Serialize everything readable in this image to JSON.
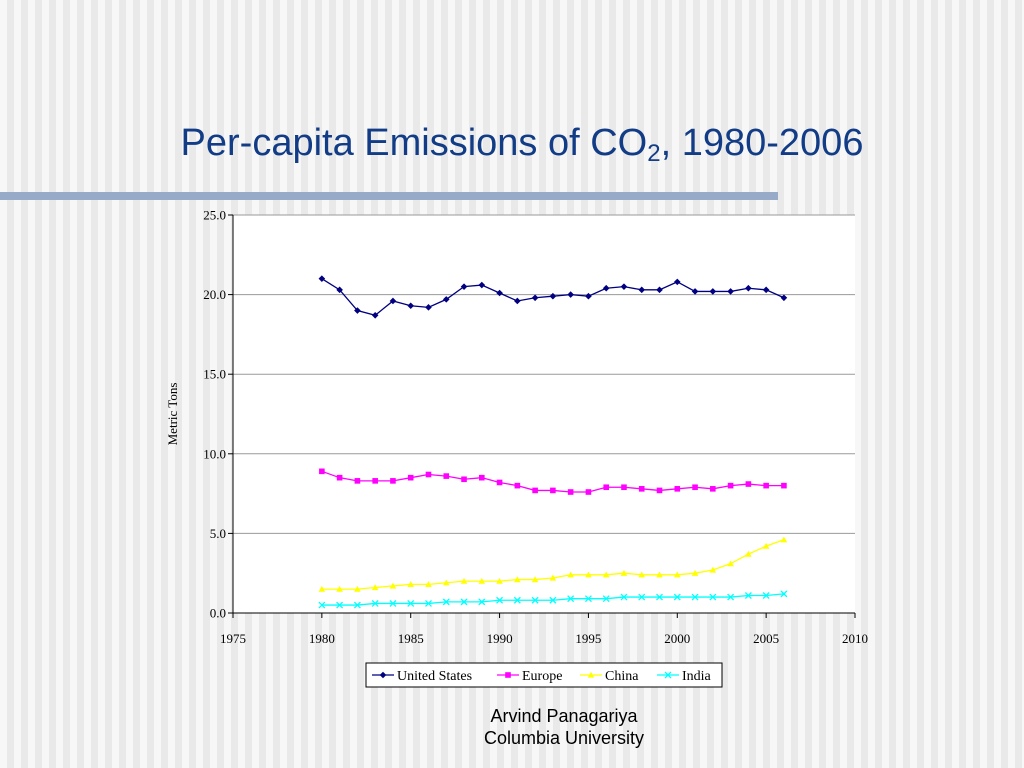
{
  "slide": {
    "title_main": "Per-capita Emissions of CO",
    "title_subscript": "2",
    "title_rest": ", 1980-2006",
    "footer_line1": "Arvind Panagariya",
    "footer_line2": "Columbia University"
  },
  "chart_data": {
    "type": "line",
    "title": "",
    "xlabel": "",
    "ylabel": "Metric Tons",
    "xlim": [
      1975,
      2010
    ],
    "ylim": [
      0,
      25
    ],
    "x_ticks": [
      "1975",
      "1980",
      "1985",
      "1990",
      "1995",
      "2000",
      "2005",
      "2010"
    ],
    "y_ticks": [
      "0.0",
      "5.0",
      "10.0",
      "15.0",
      "20.0",
      "25.0"
    ],
    "grid": "horizontal",
    "legend_position": "bottom",
    "x": [
      1980,
      1981,
      1982,
      1983,
      1984,
      1985,
      1986,
      1987,
      1988,
      1989,
      1990,
      1991,
      1992,
      1993,
      1994,
      1995,
      1996,
      1997,
      1998,
      1999,
      2000,
      2001,
      2002,
      2003,
      2004,
      2005,
      2006
    ],
    "series": [
      {
        "name": "United States",
        "color": "#000080",
        "marker": "diamond",
        "values": [
          21.0,
          20.3,
          19.0,
          18.7,
          19.6,
          19.3,
          19.2,
          19.7,
          20.5,
          20.6,
          20.1,
          19.6,
          19.8,
          19.9,
          20.0,
          19.9,
          20.4,
          20.5,
          20.3,
          20.3,
          20.8,
          20.2,
          20.2,
          20.2,
          20.4,
          20.3,
          19.8
        ]
      },
      {
        "name": "Europe",
        "color": "#ff00ff",
        "marker": "square",
        "values": [
          8.9,
          8.5,
          8.3,
          8.3,
          8.3,
          8.5,
          8.7,
          8.6,
          8.4,
          8.5,
          8.2,
          8.0,
          7.7,
          7.7,
          7.6,
          7.6,
          7.9,
          7.9,
          7.8,
          7.7,
          7.8,
          7.9,
          7.8,
          8.0,
          8.1,
          8.0,
          8.0
        ]
      },
      {
        "name": "China",
        "color": "#ffff00",
        "marker": "triangle",
        "values": [
          1.5,
          1.5,
          1.5,
          1.6,
          1.7,
          1.8,
          1.8,
          1.9,
          2.0,
          2.0,
          2.0,
          2.1,
          2.1,
          2.2,
          2.4,
          2.4,
          2.4,
          2.5,
          2.4,
          2.4,
          2.4,
          2.5,
          2.7,
          3.1,
          3.7,
          4.2,
          4.6
        ]
      },
      {
        "name": "India",
        "color": "#00ffff",
        "marker": "x",
        "values": [
          0.5,
          0.5,
          0.5,
          0.6,
          0.6,
          0.6,
          0.6,
          0.7,
          0.7,
          0.7,
          0.8,
          0.8,
          0.8,
          0.8,
          0.9,
          0.9,
          0.9,
          1.0,
          1.0,
          1.0,
          1.0,
          1.0,
          1.0,
          1.0,
          1.1,
          1.1,
          1.2
        ]
      }
    ]
  }
}
